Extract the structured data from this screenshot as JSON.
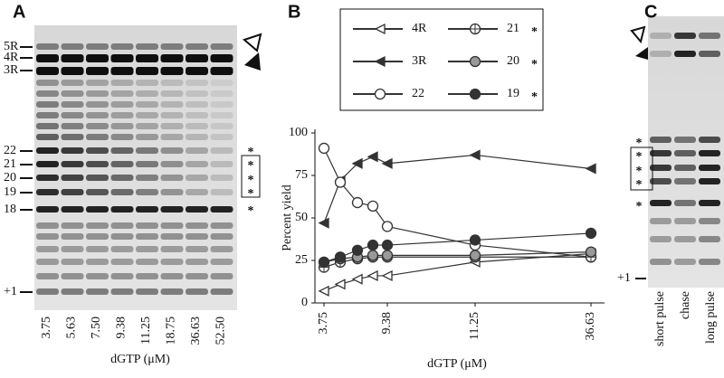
{
  "panel_a": {
    "label": "A",
    "lanes": [
      "3.75",
      "5.63",
      "7.50",
      "9.38",
      "11.25",
      "18.75",
      "36.63",
      "52.50"
    ],
    "x_label": "dGTP (μM)",
    "bands": [
      "5R",
      "4R",
      "3R",
      "22",
      "21",
      "20",
      "19",
      "18",
      "+1"
    ],
    "stars": [
      "*",
      "*",
      "*",
      "*",
      "*"
    ]
  },
  "chart_data": {
    "type": "line",
    "panel_label": "B",
    "x_label": "dGTP (μM)",
    "y_label": "Percent yield",
    "categories": [
      "3.75",
      null,
      null,
      null,
      "9.38",
      "11.25",
      "36.63"
    ],
    "ylim": [
      0,
      100
    ],
    "yticks": [
      0,
      25,
      50,
      75,
      100
    ],
    "grid": false,
    "legend_mark": "*",
    "series": [
      {
        "name": "4R",
        "marker": "open-triangle",
        "color": "#333333",
        "starred": false,
        "values": [
          7,
          11,
          14,
          16,
          16,
          24,
          29
        ]
      },
      {
        "name": "3R",
        "marker": "filled-triangle",
        "color": "#333333",
        "starred": false,
        "values": [
          47,
          72,
          82,
          86,
          82,
          87,
          79
        ]
      },
      {
        "name": "22",
        "marker": "open-circle",
        "color": "#333333",
        "starred": false,
        "values": [
          91,
          71,
          59,
          57,
          45,
          34,
          27
        ]
      },
      {
        "name": "21",
        "marker": "crossed-circle",
        "color": "#333333",
        "starred": true,
        "values": [
          21,
          24,
          26,
          27,
          27,
          27,
          27
        ]
      },
      {
        "name": "20",
        "marker": "grey-circle",
        "color": "#333333",
        "starred": true,
        "values": [
          24,
          26,
          27,
          28,
          28,
          28,
          30
        ]
      },
      {
        "name": "19",
        "marker": "filled-circle",
        "color": "#333333",
        "starred": true,
        "values": [
          24,
          27,
          31,
          34,
          34,
          37,
          41
        ]
      }
    ]
  },
  "panel_c": {
    "label": "C",
    "lanes": [
      "short pulse",
      "chase",
      "long pulse"
    ],
    "band": "+1",
    "stars": [
      "*",
      "*",
      "*",
      "*",
      "*"
    ]
  }
}
